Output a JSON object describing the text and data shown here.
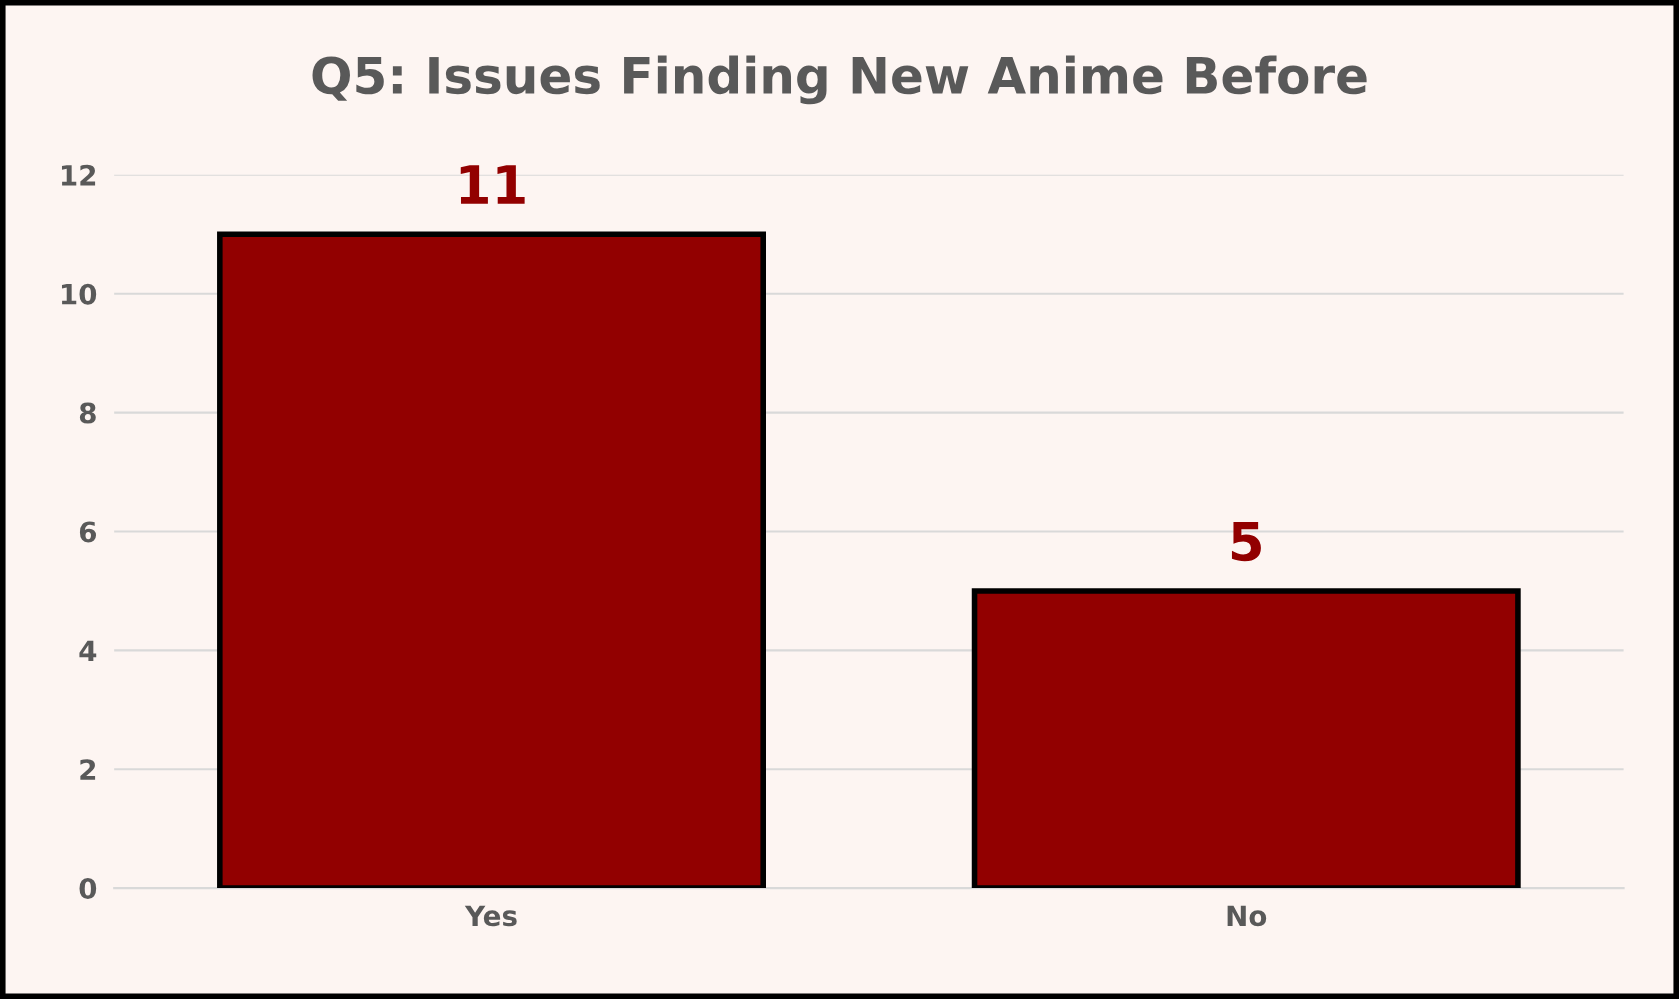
{
  "chart_data": {
    "type": "bar",
    "title": "Q5: Issues Finding New Anime Before",
    "categories": [
      "Yes",
      "No"
    ],
    "values": [
      11,
      5
    ],
    "color": "#920000",
    "ylim": [
      0,
      12
    ],
    "yticks": [
      0,
      2,
      4,
      6,
      8,
      10,
      12
    ],
    "grid": "y",
    "data_labels": true
  }
}
